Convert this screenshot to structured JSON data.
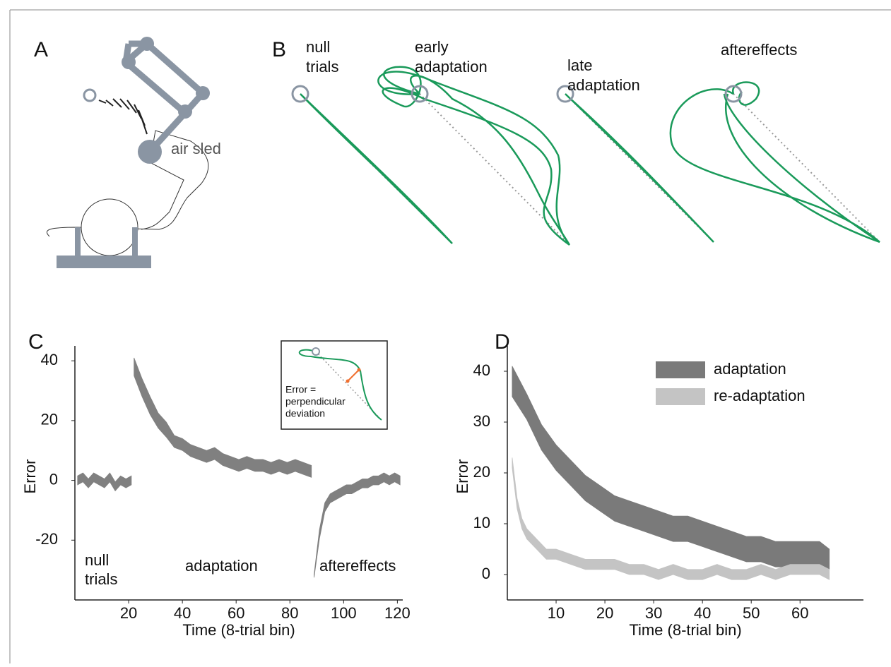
{
  "panel_labels": [
    "A",
    "B",
    "C",
    "D"
  ],
  "panel_a": {
    "label": "air sled"
  },
  "panel_b": {
    "conditions": [
      [
        "null",
        "trials"
      ],
      [
        "early",
        "adaptation"
      ],
      [
        "late",
        "adaptation"
      ],
      [
        "aftereffects"
      ]
    ]
  },
  "chart_data": [
    {
      "type": "band",
      "xlabel": "Time (8-trial bin)",
      "ylabel": "Error",
      "xlim": [
        0,
        122
      ],
      "ylim": [
        -40,
        45
      ],
      "xticks": [
        20,
        40,
        60,
        80,
        100,
        120
      ],
      "yticks": [
        -20,
        0,
        20,
        40
      ],
      "annotations": [
        [
          "null",
          "trials"
        ],
        [
          "adaptation"
        ],
        [
          "aftereffects"
        ]
      ],
      "inset": [
        "Error =",
        "perpendicular",
        "deviation"
      ],
      "series": [
        {
          "color": "#808080",
          "x": [
            1,
            3,
            5,
            7,
            9,
            11,
            13,
            15,
            17,
            19,
            21
          ],
          "values": [
            0,
            1,
            -1,
            1,
            0,
            -1,
            1,
            -2,
            0,
            -1,
            0
          ],
          "errors": [
            1.5,
            1.5,
            1.5,
            1.5,
            1.5,
            1.5,
            1.5,
            1.5,
            1.5,
            1.5,
            1.5
          ]
        },
        {
          "color": "#808080",
          "x": [
            22,
            25,
            28,
            31,
            34,
            37,
            40,
            43,
            46,
            49,
            52,
            55,
            58,
            61,
            64,
            67,
            70,
            73,
            76,
            79,
            82,
            85,
            88
          ],
          "values": [
            38,
            31,
            25,
            20,
            17,
            13,
            12,
            10,
            9,
            8,
            9,
            7,
            6,
            5,
            6,
            5,
            5,
            4,
            5,
            4,
            5,
            4,
            3
          ],
          "errors": [
            3,
            3,
            3,
            2.5,
            2.5,
            2,
            2,
            2,
            2,
            2,
            2,
            2,
            2,
            2,
            2,
            2,
            2,
            2,
            2,
            2,
            2,
            2,
            2
          ]
        },
        {
          "color": "#808080",
          "x": [
            89,
            91,
            93,
            95,
            97,
            99,
            101,
            103,
            105,
            107,
            109,
            111,
            113,
            115,
            117,
            119,
            121
          ],
          "values": [
            -32,
            -18,
            -9,
            -6,
            -5,
            -4,
            -3,
            -3,
            -2,
            -1,
            -1,
            0,
            0,
            1,
            0,
            1,
            0
          ],
          "errors": [
            0.5,
            1.5,
            1.5,
            1.5,
            1.5,
            1.5,
            1.5,
            1.5,
            1.5,
            1.5,
            1.5,
            1.5,
            1.5,
            1.5,
            1.5,
            1.5,
            1.5
          ]
        }
      ]
    },
    {
      "type": "band",
      "xlabel": "Time (8-trial bin)",
      "ylabel": "Error",
      "xlim": [
        0,
        73
      ],
      "ylim": [
        -5,
        45
      ],
      "xticks": [
        10,
        20,
        30,
        40,
        50,
        60
      ],
      "yticks": [
        0,
        10,
        20,
        30,
        40
      ],
      "series": [
        {
          "name": "adaptation",
          "color": "#7a7a7a",
          "x": [
            1,
            4,
            7,
            10,
            13,
            16,
            19,
            22,
            25,
            28,
            31,
            34,
            37,
            40,
            43,
            46,
            49,
            52,
            55,
            58,
            61,
            64,
            66
          ],
          "values": [
            38,
            33,
            27,
            23,
            20,
            17,
            15,
            13,
            12,
            11,
            10,
            9,
            9,
            8,
            7,
            6,
            5,
            5,
            4,
            4,
            4,
            4,
            3
          ],
          "errors": [
            3,
            2.5,
            2.5,
            2.5,
            2.5,
            2.5,
            2.5,
            2.5,
            2.5,
            2.5,
            2.5,
            2.5,
            2.5,
            2.5,
            2.5,
            2.5,
            2.5,
            2.5,
            2.5,
            2.5,
            2.5,
            2.5,
            2
          ]
        },
        {
          "name": "re-adaptation",
          "color": "#c4c4c4",
          "x": [
            1,
            2,
            3,
            4,
            6,
            8,
            10,
            13,
            16,
            19,
            22,
            25,
            28,
            31,
            34,
            37,
            40,
            43,
            46,
            49,
            52,
            55,
            58,
            61,
            64,
            66
          ],
          "values": [
            22,
            14,
            10,
            8,
            6,
            4,
            4,
            3,
            2,
            2,
            2,
            1,
            1,
            0,
            1,
            0,
            0,
            1,
            0,
            0,
            1,
            0,
            1,
            1,
            1,
            0
          ],
          "errors": [
            1,
            1,
            1,
            1,
            1,
            1,
            1,
            1,
            1,
            1,
            1,
            1,
            1,
            1,
            1,
            1,
            1,
            1,
            1,
            1,
            1,
            1,
            1,
            1,
            1,
            1
          ]
        }
      ]
    }
  ]
}
